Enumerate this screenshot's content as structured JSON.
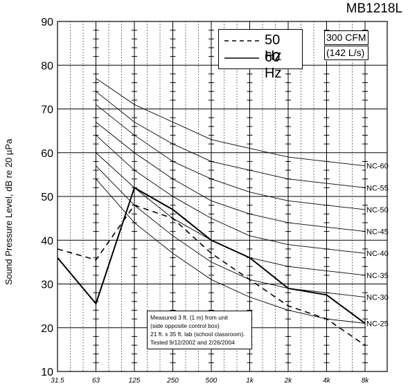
{
  "model": "MB1218L",
  "ylabel_text": "Sound Pressure Level, dB re 20 µPa",
  "legend": {
    "item_50": "50 Hz",
    "item_60": "60 Hz"
  },
  "airflow": {
    "line1": "300 CFM",
    "line2": "(142 L/s)"
  },
  "note": {
    "line1": "Measured 3 ft. (1 m) from unit",
    "line2": "(side opposite control box)",
    "line3": "21 ft. x 35 ft. lab (school classroom).",
    "line4": "Tested 9/12/2002 and 2/26/2004"
  },
  "chart_data": {
    "type": "line",
    "title": "MB1218L",
    "xlabel": "",
    "ylabel": "Sound Pressure Level, dB re 20 µPa",
    "x_categories": [
      "31.5",
      "63",
      "125",
      "250",
      "500",
      "1k",
      "2k",
      "4k",
      "8k"
    ],
    "ylim": [
      10,
      90
    ],
    "y_ticks": [
      10,
      20,
      30,
      40,
      50,
      60,
      70,
      80,
      90
    ],
    "grid": true,
    "legend_position": "top-center",
    "series": [
      {
        "name": "50 Hz",
        "style": "dashed",
        "values": [
          38,
          35.5,
          48,
          45,
          37,
          31,
          25,
          22,
          16
        ]
      },
      {
        "name": "60 Hz",
        "style": "solid",
        "values": [
          36,
          25.5,
          52,
          47,
          40,
          36,
          29,
          27.5,
          21
        ]
      }
    ],
    "nc_curves": [
      {
        "label": "NC-25",
        "values": [
          null,
          54,
          44,
          37,
          31,
          27,
          24,
          22,
          21
        ]
      },
      {
        "label": "NC-30",
        "values": [
          null,
          57,
          48,
          41,
          35,
          31,
          29,
          28,
          27
        ]
      },
      {
        "label": "NC-35",
        "values": [
          null,
          60,
          52,
          45,
          40,
          36,
          34,
          33,
          32
        ]
      },
      {
        "label": "NC-40",
        "values": [
          null,
          64,
          56,
          50,
          45,
          41,
          39,
          38,
          37
        ]
      },
      {
        "label": "NC-45",
        "values": [
          null,
          67,
          60,
          54,
          49,
          46,
          44,
          43,
          42
        ]
      },
      {
        "label": "NC-50",
        "values": [
          null,
          71,
          64,
          58,
          54,
          51,
          49,
          48,
          47
        ]
      },
      {
        "label": "NC-55",
        "values": [
          null,
          74,
          67,
          62,
          58,
          56,
          54,
          53,
          52
        ]
      },
      {
        "label": "NC-60",
        "values": [
          null,
          77,
          71,
          67,
          63,
          61,
          59,
          58,
          57
        ]
      }
    ]
  }
}
